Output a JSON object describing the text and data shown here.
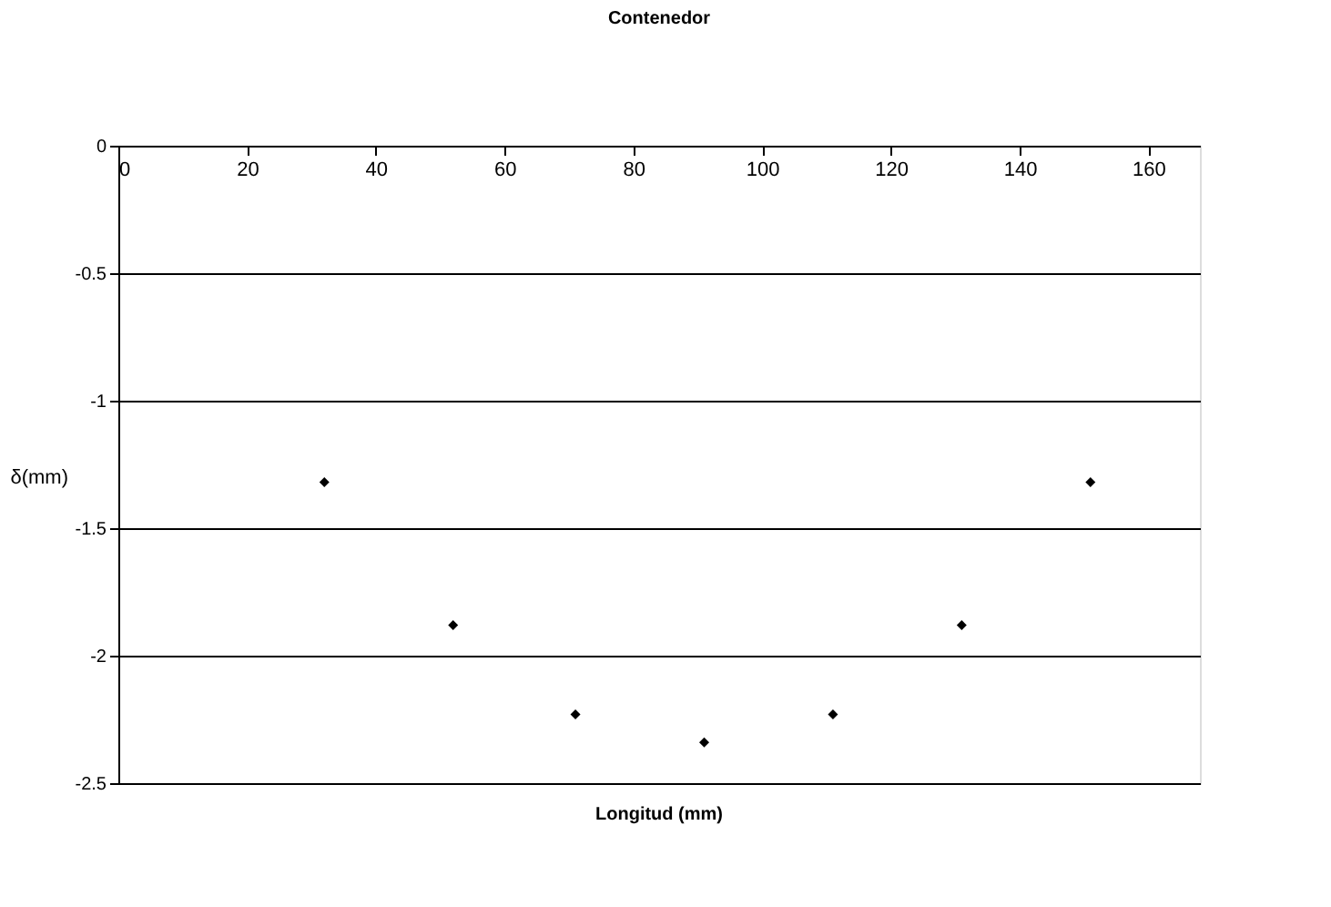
{
  "chart_data": {
    "type": "scatter",
    "title": "Contenedor",
    "xlabel": "Longitud (mm)",
    "ylabel": "δ(mm)",
    "x": [
      32,
      52,
      71,
      91,
      111,
      131,
      151
    ],
    "series": [
      {
        "color": "#000000",
        "values": [
          -1.32,
          -1.88,
          -2.23,
          -2.34,
          -2.23,
          -1.88,
          -1.32
        ]
      }
    ],
    "xlim": [
      0,
      168
    ],
    "xticks": [
      0,
      20,
      40,
      60,
      80,
      100,
      120,
      140,
      160
    ],
    "ylim": [
      -2.5,
      0
    ],
    "yticks": [
      0,
      -0.5,
      -1,
      -1.5,
      -2,
      -2.5
    ],
    "grid": "y",
    "marker": "diamond"
  }
}
